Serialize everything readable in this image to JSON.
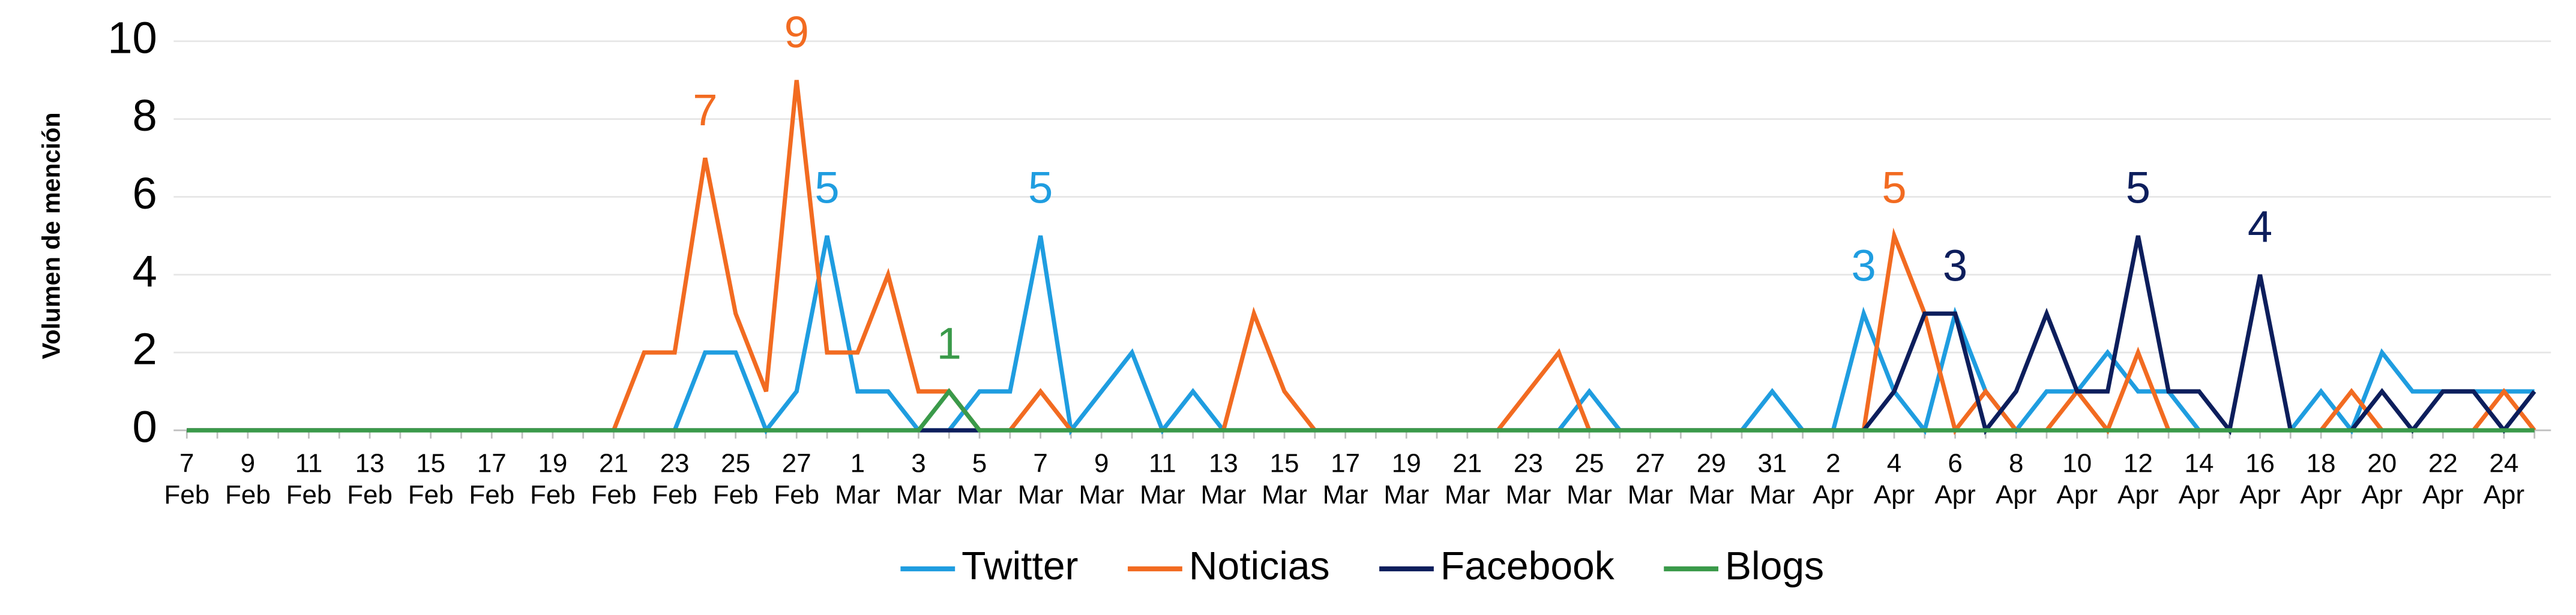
{
  "chart_data": {
    "type": "line",
    "ylabel": "Volumen de mención",
    "categories": [
      "7 Feb",
      null,
      "9 Feb",
      null,
      "11 Feb",
      null,
      "13 Feb",
      null,
      "15 Feb",
      null,
      "17 Feb",
      null,
      "19 Feb",
      null,
      "21 Feb",
      null,
      "23 Feb",
      null,
      "25 Feb",
      null,
      "27 Feb",
      null,
      "1 Mar",
      null,
      "3 Mar",
      null,
      "5 Mar",
      null,
      "7 Mar",
      null,
      "9 Mar",
      null,
      "11 Mar",
      null,
      "13 Mar",
      null,
      "15 Mar",
      null,
      "17 Mar",
      null,
      "19 Mar",
      null,
      "21 Mar",
      null,
      "23 Mar",
      null,
      "25 Mar",
      null,
      "27 Mar",
      null,
      "29 Mar",
      null,
      "31 Mar",
      null,
      "2 Apr",
      null,
      "4 Apr",
      null,
      "6 Apr",
      null,
      "8 Apr",
      null,
      "10 Apr",
      null,
      "12 Apr",
      null,
      "14 Apr",
      null,
      "16 Apr",
      null,
      "18 Apr",
      null,
      "20 Apr",
      null,
      "22 Apr",
      null,
      "24 Apr",
      null
    ],
    "series": [
      {
        "name": "Twitter",
        "color": "#1f9de0",
        "values": [
          0,
          0,
          0,
          0,
          0,
          0,
          0,
          0,
          0,
          0,
          0,
          0,
          0,
          0,
          0,
          0,
          0,
          2,
          2,
          0,
          1,
          5,
          1,
          1,
          0,
          0,
          1,
          1,
          5,
          0,
          1,
          2,
          0,
          1,
          0,
          0,
          0,
          0,
          0,
          0,
          0,
          0,
          0,
          0,
          0,
          0,
          1,
          0,
          0,
          0,
          0,
          0,
          1,
          0,
          0,
          3,
          1,
          0,
          3,
          1,
          0,
          1,
          1,
          2,
          1,
          1,
          0,
          0,
          0,
          0,
          1,
          0,
          2,
          1,
          1,
          1,
          1,
          1
        ],
        "value_labels": [
          null,
          null,
          null,
          null,
          null,
          null,
          null,
          null,
          null,
          null,
          null,
          null,
          null,
          null,
          null,
          null,
          null,
          null,
          null,
          null,
          null,
          "5",
          null,
          null,
          null,
          null,
          null,
          null,
          "5",
          null,
          null,
          null,
          null,
          null,
          null,
          null,
          null,
          null,
          null,
          null,
          null,
          null,
          null,
          null,
          null,
          null,
          null,
          null,
          null,
          null,
          null,
          null,
          null,
          null,
          null,
          "3",
          null,
          null,
          null,
          null,
          null,
          null,
          null,
          null,
          null,
          null,
          null,
          null,
          null,
          null,
          null,
          null,
          null,
          null,
          null,
          null,
          null,
          null
        ]
      },
      {
        "name": "Noticias",
        "color": "#f26b21",
        "values": [
          0,
          0,
          0,
          0,
          0,
          0,
          0,
          0,
          0,
          0,
          0,
          0,
          0,
          0,
          0,
          2,
          2,
          7,
          3,
          1,
          9,
          2,
          2,
          4,
          1,
          1,
          0,
          0,
          1,
          0,
          0,
          0,
          0,
          0,
          0,
          3,
          1,
          0,
          0,
          0,
          0,
          0,
          0,
          0,
          1,
          2,
          0,
          0,
          0,
          0,
          0,
          0,
          0,
          0,
          0,
          0,
          5,
          3,
          0,
          1,
          0,
          0,
          1,
          0,
          2,
          0,
          0,
          0,
          0,
          0,
          0,
          1,
          0,
          0,
          0,
          0,
          1,
          0
        ],
        "value_labels": [
          null,
          null,
          null,
          null,
          null,
          null,
          null,
          null,
          null,
          null,
          null,
          null,
          null,
          null,
          null,
          null,
          null,
          "7",
          null,
          null,
          "9",
          null,
          null,
          null,
          null,
          null,
          null,
          null,
          null,
          null,
          null,
          null,
          null,
          null,
          null,
          null,
          null,
          null,
          null,
          null,
          null,
          null,
          null,
          null,
          null,
          null,
          null,
          null,
          null,
          null,
          null,
          null,
          null,
          null,
          null,
          null,
          "5",
          null,
          null,
          null,
          null,
          null,
          null,
          null,
          null,
          null,
          null,
          null,
          null,
          null,
          null,
          null,
          null,
          null,
          null,
          null,
          null,
          null
        ]
      },
      {
        "name": "Facebook",
        "color": "#0d1e5c",
        "values": [
          0,
          0,
          0,
          0,
          0,
          0,
          0,
          0,
          0,
          0,
          0,
          0,
          0,
          0,
          0,
          0,
          0,
          0,
          0,
          0,
          0,
          0,
          0,
          0,
          0,
          0,
          0,
          0,
          0,
          0,
          0,
          0,
          0,
          0,
          0,
          0,
          0,
          0,
          0,
          0,
          0,
          0,
          0,
          0,
          0,
          0,
          0,
          0,
          0,
          0,
          0,
          0,
          0,
          0,
          0,
          0,
          1,
          3,
          3,
          0,
          1,
          3,
          1,
          1,
          5,
          1,
          1,
          0,
          4,
          0,
          0,
          0,
          1,
          0,
          1,
          1,
          0,
          1
        ],
        "value_labels": [
          null,
          null,
          null,
          null,
          null,
          null,
          null,
          null,
          null,
          null,
          null,
          null,
          null,
          null,
          null,
          null,
          null,
          null,
          null,
          null,
          null,
          null,
          null,
          null,
          null,
          null,
          null,
          null,
          null,
          null,
          null,
          null,
          null,
          null,
          null,
          null,
          null,
          null,
          null,
          null,
          null,
          null,
          null,
          null,
          null,
          null,
          null,
          null,
          null,
          null,
          null,
          null,
          null,
          null,
          null,
          null,
          null,
          null,
          "3",
          null,
          null,
          null,
          null,
          null,
          "5",
          null,
          null,
          null,
          "4",
          null,
          null,
          null,
          null,
          null,
          null,
          null,
          null,
          null
        ]
      },
      {
        "name": "Blogs",
        "color": "#3a9a4a",
        "values": [
          0,
          0,
          0,
          0,
          0,
          0,
          0,
          0,
          0,
          0,
          0,
          0,
          0,
          0,
          0,
          0,
          0,
          0,
          0,
          0,
          0,
          0,
          0,
          0,
          0,
          1,
          0,
          0,
          0,
          0,
          0,
          0,
          0,
          0,
          0,
          0,
          0,
          0,
          0,
          0,
          0,
          0,
          0,
          0,
          0,
          0,
          0,
          0,
          0,
          0,
          0,
          0,
          0,
          0,
          0,
          0,
          0,
          0,
          0,
          0,
          0,
          0,
          0,
          0,
          0,
          0,
          0,
          0,
          0,
          0,
          0,
          0,
          0,
          0,
          0,
          0,
          0,
          0
        ],
        "value_labels": [
          null,
          null,
          null,
          null,
          null,
          null,
          null,
          null,
          null,
          null,
          null,
          null,
          null,
          null,
          null,
          null,
          null,
          null,
          null,
          null,
          null,
          null,
          null,
          null,
          null,
          "1",
          null,
          null,
          null,
          null,
          null,
          null,
          null,
          null,
          null,
          null,
          null,
          null,
          null,
          null,
          null,
          null,
          null,
          null,
          null,
          null,
          null,
          null,
          null,
          null,
          null,
          null,
          null,
          null,
          null,
          null,
          null,
          null,
          null,
          null,
          null,
          null,
          null,
          null,
          null,
          null,
          null,
          null,
          null,
          null,
          null,
          null,
          null,
          null,
          null,
          null,
          null,
          null
        ]
      }
    ],
    "ylim": [
      0,
      10
    ],
    "yticks": [
      0,
      2,
      4,
      6,
      8,
      10
    ],
    "grid": true,
    "legend": "bottom"
  }
}
